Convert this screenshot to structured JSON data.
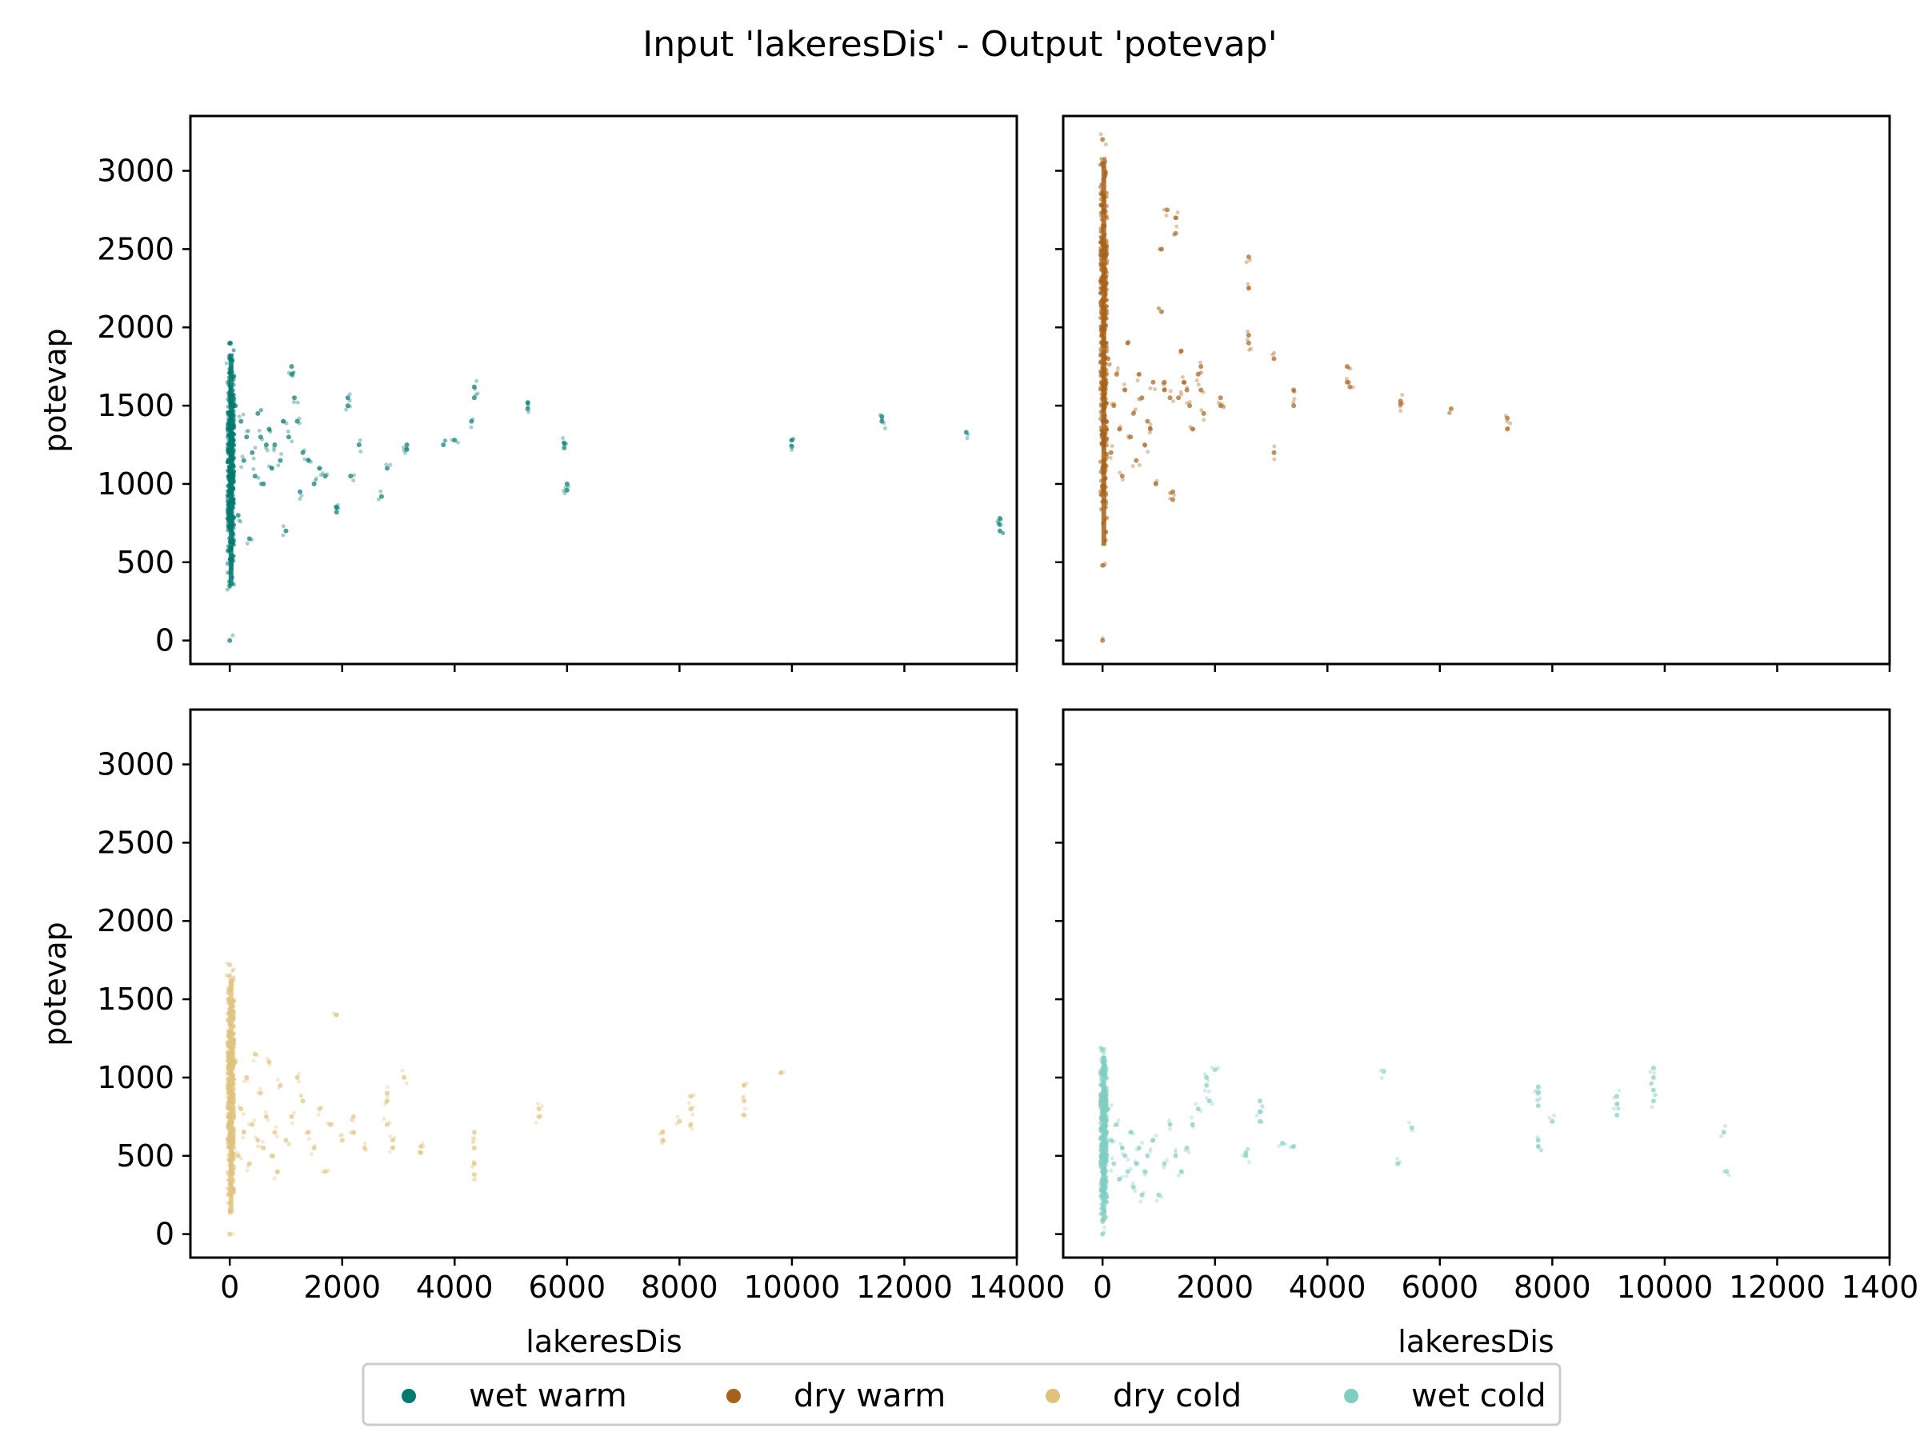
{
  "chart_data": {
    "type": "scatter",
    "title": "Input 'lakeresDis' - Output 'potevap'",
    "xlabel": "lakeresDis",
    "ylabel": "potevap",
    "xlim": [
      -700,
      14000
    ],
    "ylim": [
      -150,
      3350
    ],
    "xticks": [
      "0",
      "2000",
      "4000",
      "6000",
      "8000",
      "10000",
      "12000",
      "14000"
    ],
    "yticks": [
      "0",
      "500",
      "1000",
      "1500",
      "2000",
      "2500",
      "3000"
    ],
    "legend_position": "bottom-center",
    "grid": false,
    "series": [
      {
        "name": "wet warm",
        "color": "#01796f",
        "main_band": {
          "x_max": 60,
          "y_min": 320,
          "y_max": 1930
        },
        "points": [
          [
            0,
            0
          ],
          [
            0,
            1900
          ],
          [
            0,
            1800
          ],
          [
            0,
            350
          ],
          [
            100,
            1500
          ],
          [
            150,
            800
          ],
          [
            200,
            1400
          ],
          [
            250,
            1150
          ],
          [
            300,
            1300
          ],
          [
            350,
            650
          ],
          [
            400,
            1200
          ],
          [
            450,
            1050
          ],
          [
            500,
            1450
          ],
          [
            550,
            1300
          ],
          [
            600,
            1000
          ],
          [
            650,
            1250
          ],
          [
            700,
            1350
          ],
          [
            750,
            1100
          ],
          [
            800,
            1250
          ],
          [
            900,
            1150
          ],
          [
            950,
            1400
          ],
          [
            1000,
            700
          ],
          [
            1050,
            1300
          ],
          [
            1100,
            1750
          ],
          [
            1100,
            1700
          ],
          [
            1150,
            1550
          ],
          [
            1200,
            1400
          ],
          [
            1250,
            950
          ],
          [
            1300,
            1200
          ],
          [
            1400,
            1150
          ],
          [
            1500,
            1000
          ],
          [
            1600,
            1100
          ],
          [
            1700,
            1050
          ],
          [
            1900,
            850
          ],
          [
            1900,
            820
          ],
          [
            2100,
            1550
          ],
          [
            2100,
            1500
          ],
          [
            2150,
            1050
          ],
          [
            2300,
            1250
          ],
          [
            2700,
            920
          ],
          [
            2800,
            1100
          ],
          [
            3150,
            1250
          ],
          [
            3150,
            1220
          ],
          [
            3800,
            1250
          ],
          [
            4000,
            1280
          ],
          [
            4300,
            1400
          ],
          [
            4350,
            1620
          ],
          [
            4350,
            1550
          ],
          [
            5300,
            1520
          ],
          [
            5300,
            1480
          ],
          [
            5950,
            1260
          ],
          [
            5950,
            1230
          ],
          [
            6000,
            1000
          ],
          [
            6000,
            960
          ],
          [
            10000,
            1280
          ],
          [
            10000,
            1240
          ],
          [
            11600,
            1430
          ],
          [
            11600,
            1400
          ],
          [
            13100,
            1330
          ],
          [
            13700,
            780
          ],
          [
            13700,
            740
          ],
          [
            13700,
            700
          ]
        ]
      },
      {
        "name": "dry warm",
        "color": "#a6611a",
        "main_band": {
          "x_max": 60,
          "y_min": 550,
          "y_max": 3220
        },
        "points": [
          [
            0,
            0
          ],
          [
            0,
            3200
          ],
          [
            0,
            3050
          ],
          [
            0,
            480
          ],
          [
            100,
            1800
          ],
          [
            150,
            1200
          ],
          [
            200,
            1500
          ],
          [
            250,
            1700
          ],
          [
            300,
            1350
          ],
          [
            350,
            1050
          ],
          [
            400,
            1600
          ],
          [
            450,
            1900
          ],
          [
            500,
            1300
          ],
          [
            550,
            1450
          ],
          [
            600,
            1150
          ],
          [
            650,
            1700
          ],
          [
            700,
            1550
          ],
          [
            750,
            1250
          ],
          [
            800,
            1400
          ],
          [
            850,
            1350
          ],
          [
            900,
            1650
          ],
          [
            950,
            1000
          ],
          [
            1050,
            2500
          ],
          [
            1050,
            2100
          ],
          [
            1100,
            1650
          ],
          [
            1100,
            1600
          ],
          [
            1150,
            2750
          ],
          [
            1200,
            1550
          ],
          [
            1250,
            950
          ],
          [
            1250,
            900
          ],
          [
            1300,
            2700
          ],
          [
            1300,
            2600
          ],
          [
            1350,
            1550
          ],
          [
            1400,
            1850
          ],
          [
            1450,
            1650
          ],
          [
            1500,
            1600
          ],
          [
            1550,
            1500
          ],
          [
            1600,
            1350
          ],
          [
            1700,
            1700
          ],
          [
            1750,
            1750
          ],
          [
            1750,
            1600
          ],
          [
            1800,
            1450
          ],
          [
            2100,
            1550
          ],
          [
            2100,
            1500
          ],
          [
            2600,
            2450
          ],
          [
            2600,
            2250
          ],
          [
            2600,
            1950
          ],
          [
            2600,
            1900
          ],
          [
            3050,
            1800
          ],
          [
            3050,
            1200
          ],
          [
            3400,
            1600
          ],
          [
            3400,
            1500
          ],
          [
            4350,
            1750
          ],
          [
            4350,
            1650
          ],
          [
            4400,
            1620
          ],
          [
            5300,
            1530
          ],
          [
            5300,
            1510
          ],
          [
            6200,
            1480
          ],
          [
            7200,
            1420
          ],
          [
            7200,
            1350
          ]
        ]
      },
      {
        "name": "dry cold",
        "color": "#dfc27d",
        "main_band": {
          "x_max": 60,
          "y_min": 120,
          "y_max": 1720
        },
        "points": [
          [
            0,
            0
          ],
          [
            0,
            1720
          ],
          [
            0,
            1650
          ],
          [
            0,
            150
          ],
          [
            100,
            1100
          ],
          [
            150,
            500
          ],
          [
            200,
            800
          ],
          [
            250,
            650
          ],
          [
            300,
            1000
          ],
          [
            350,
            450
          ],
          [
            400,
            700
          ],
          [
            450,
            1150
          ],
          [
            500,
            600
          ],
          [
            550,
            900
          ],
          [
            600,
            550
          ],
          [
            650,
            750
          ],
          [
            700,
            1100
          ],
          [
            750,
            500
          ],
          [
            800,
            650
          ],
          [
            850,
            400
          ],
          [
            900,
            950
          ],
          [
            1000,
            600
          ],
          [
            1100,
            750
          ],
          [
            1200,
            1000
          ],
          [
            1300,
            850
          ],
          [
            1400,
            650
          ],
          [
            1500,
            550
          ],
          [
            1600,
            800
          ],
          [
            1700,
            400
          ],
          [
            1800,
            700
          ],
          [
            1900,
            1400
          ],
          [
            2000,
            600
          ],
          [
            2200,
            750
          ],
          [
            2200,
            650
          ],
          [
            2400,
            550
          ],
          [
            2800,
            900
          ],
          [
            2800,
            850
          ],
          [
            2800,
            700
          ],
          [
            2900,
            600
          ],
          [
            2900,
            550
          ],
          [
            3100,
            1000
          ],
          [
            3400,
            560
          ],
          [
            3400,
            520
          ],
          [
            4350,
            650
          ],
          [
            4350,
            550
          ],
          [
            4350,
            450
          ],
          [
            4350,
            380
          ],
          [
            5500,
            800
          ],
          [
            5500,
            750
          ],
          [
            7700,
            650
          ],
          [
            7700,
            600
          ],
          [
            8000,
            720
          ],
          [
            8200,
            880
          ],
          [
            8200,
            800
          ],
          [
            8200,
            700
          ],
          [
            9150,
            950
          ],
          [
            9150,
            850
          ],
          [
            9150,
            760
          ],
          [
            9800,
            1030
          ]
        ]
      },
      {
        "name": "wet cold",
        "color": "#80cdc1",
        "main_band": {
          "x_max": 60,
          "y_min": 80,
          "y_max": 1200
        },
        "points": [
          [
            0,
            0
          ],
          [
            0,
            1180
          ],
          [
            0,
            1100
          ],
          [
            0,
            80
          ],
          [
            100,
            800
          ],
          [
            150,
            600
          ],
          [
            200,
            450
          ],
          [
            250,
            700
          ],
          [
            300,
            350
          ],
          [
            350,
            550
          ],
          [
            400,
            500
          ],
          [
            450,
            400
          ],
          [
            500,
            650
          ],
          [
            550,
            300
          ],
          [
            600,
            450
          ],
          [
            650,
            550
          ],
          [
            700,
            250
          ],
          [
            750,
            400
          ],
          [
            800,
            500
          ],
          [
            900,
            600
          ],
          [
            1000,
            250
          ],
          [
            1100,
            450
          ],
          [
            1200,
            700
          ],
          [
            1300,
            500
          ],
          [
            1400,
            400
          ],
          [
            1500,
            550
          ],
          [
            1600,
            700
          ],
          [
            1700,
            800
          ],
          [
            1850,
            1000
          ],
          [
            1850,
            950
          ],
          [
            1900,
            850
          ],
          [
            2000,
            1050
          ],
          [
            2550,
            520
          ],
          [
            2550,
            500
          ],
          [
            2800,
            850
          ],
          [
            2800,
            780
          ],
          [
            2800,
            720
          ],
          [
            3200,
            580
          ],
          [
            3400,
            560
          ],
          [
            5000,
            1040
          ],
          [
            5250,
            450
          ],
          [
            5500,
            680
          ],
          [
            7750,
            940
          ],
          [
            7750,
            900
          ],
          [
            7750,
            820
          ],
          [
            7750,
            600
          ],
          [
            7750,
            560
          ],
          [
            8000,
            720
          ],
          [
            9150,
            880
          ],
          [
            9150,
            830
          ],
          [
            9150,
            760
          ],
          [
            9800,
            1060
          ],
          [
            9800,
            1000
          ],
          [
            9800,
            920
          ],
          [
            9800,
            850
          ],
          [
            11050,
            650
          ],
          [
            11100,
            400
          ]
        ]
      }
    ]
  }
}
